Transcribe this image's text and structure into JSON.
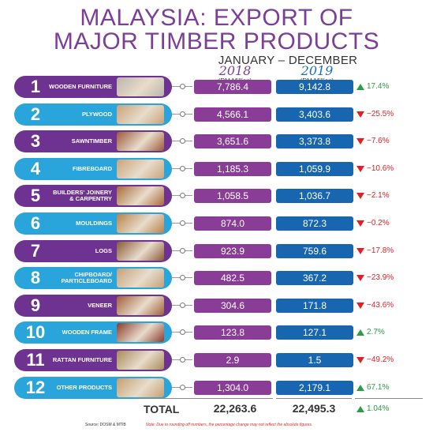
{
  "title_line1": "MALAYSIA: EXPORT OF",
  "title_line2": "MAJOR TIMBER PRODUCTS",
  "subtitle": "JANUARY – DECEMBER",
  "year_2018": "2018",
  "year_2019": "2019",
  "unit": "(RM Million)",
  "colors": {
    "accent_purple": "#7b3f98",
    "accent_blue": "#1866b0",
    "increase": "#2e9b47",
    "decrease": "#e01f26"
  },
  "chart_data": {
    "type": "table",
    "title": "MALAYSIA: EXPORT OF MAJOR TIMBER PRODUCTS",
    "subtitle": "JANUARY – DECEMBER",
    "columns": [
      "2018",
      "2019"
    ],
    "unit": "(RM Million)",
    "rows": [
      {
        "rank": "1",
        "product": "WOODEN FURNITURE",
        "v2018": "7,786.4",
        "v2019": "9,142.8",
        "change": "17.4%",
        "direction": "up",
        "pill_color": "#6e3290",
        "photo_color": "#b9b5ad"
      },
      {
        "rank": "2",
        "product": "PLYWOOD",
        "v2018": "4,566.1",
        "v2019": "3,403.6",
        "change": "−25.5%",
        "direction": "down",
        "pill_color": "#2aa5dc",
        "photo_color": "#c9a27a"
      },
      {
        "rank": "3",
        "product": "SAWNTIMBER",
        "v2018": "3,651.6",
        "v2019": "3,373.8",
        "change": "−7.6%",
        "direction": "down",
        "pill_color": "#6e3290",
        "photo_color": "#9c5a3c"
      },
      {
        "rank": "4",
        "product": "FIBREBOARD",
        "v2018": "1,185.3",
        "v2019": "1,059.9",
        "change": "−10.6%",
        "direction": "down",
        "pill_color": "#2aa5dc",
        "photo_color": "#c8a47e"
      },
      {
        "rank": "5",
        "product": "BUILDERS' JOINERY & CARPENTRY",
        "v2018": "1,058.5",
        "v2019": "1,036.7",
        "change": "−2.1%",
        "direction": "down",
        "pill_color": "#6e3290",
        "photo_color": "#a86b3c"
      },
      {
        "rank": "6",
        "product": "MOULDINGS",
        "v2018": "874.0",
        "v2019": "872.3",
        "change": "−0.2%",
        "direction": "down",
        "pill_color": "#2aa5dc",
        "photo_color": "#b98248"
      },
      {
        "rank": "7",
        "product": "LOGS",
        "v2018": "923.9",
        "v2019": "759.6",
        "change": "−17.8%",
        "direction": "down",
        "pill_color": "#6e3290",
        "photo_color": "#8a5a3a"
      },
      {
        "rank": "8",
        "product": "CHIPBOARD/ PARTICLEBOARD",
        "v2018": "482.5",
        "v2019": "367.2",
        "change": "−23.9%",
        "direction": "down",
        "pill_color": "#2aa5dc",
        "photo_color": "#c2a27c"
      },
      {
        "rank": "9",
        "product": "VENEER",
        "v2018": "304.6",
        "v2019": "171.8",
        "change": "−43.6%",
        "direction": "down",
        "pill_color": "#6e3290",
        "photo_color": "#a0603a"
      },
      {
        "rank": "10",
        "product": "WOODEN FRAME",
        "v2018": "123.8",
        "v2019": "127.1",
        "change": "2.7%",
        "direction": "up",
        "pill_color": "#2aa5dc",
        "photo_color": "#8a3c2c"
      },
      {
        "rank": "11",
        "product": "RATTAN FURNITURE",
        "v2018": "2.9",
        "v2019": "1.5",
        "change": "−49.2%",
        "direction": "down",
        "pill_color": "#6e3290",
        "photo_color": "#a88a5c"
      },
      {
        "rank": "12",
        "product": "OTHER PRODUCTS",
        "v2018": "1,304.0",
        "v2019": "2,179.1",
        "change": "67.1%",
        "direction": "up",
        "pill_color": "#2aa5dc",
        "photo_color": "#c4a070"
      }
    ],
    "total": {
      "label": "TOTAL",
      "v2018": "22,263.6",
      "v2019": "22,495.3",
      "change": "1.04%",
      "direction": "up"
    }
  },
  "source": "Source: DOSM & MTIB",
  "note": "Note: Due to rounding off numbers, the percentage change may not reflect the absolute figures."
}
